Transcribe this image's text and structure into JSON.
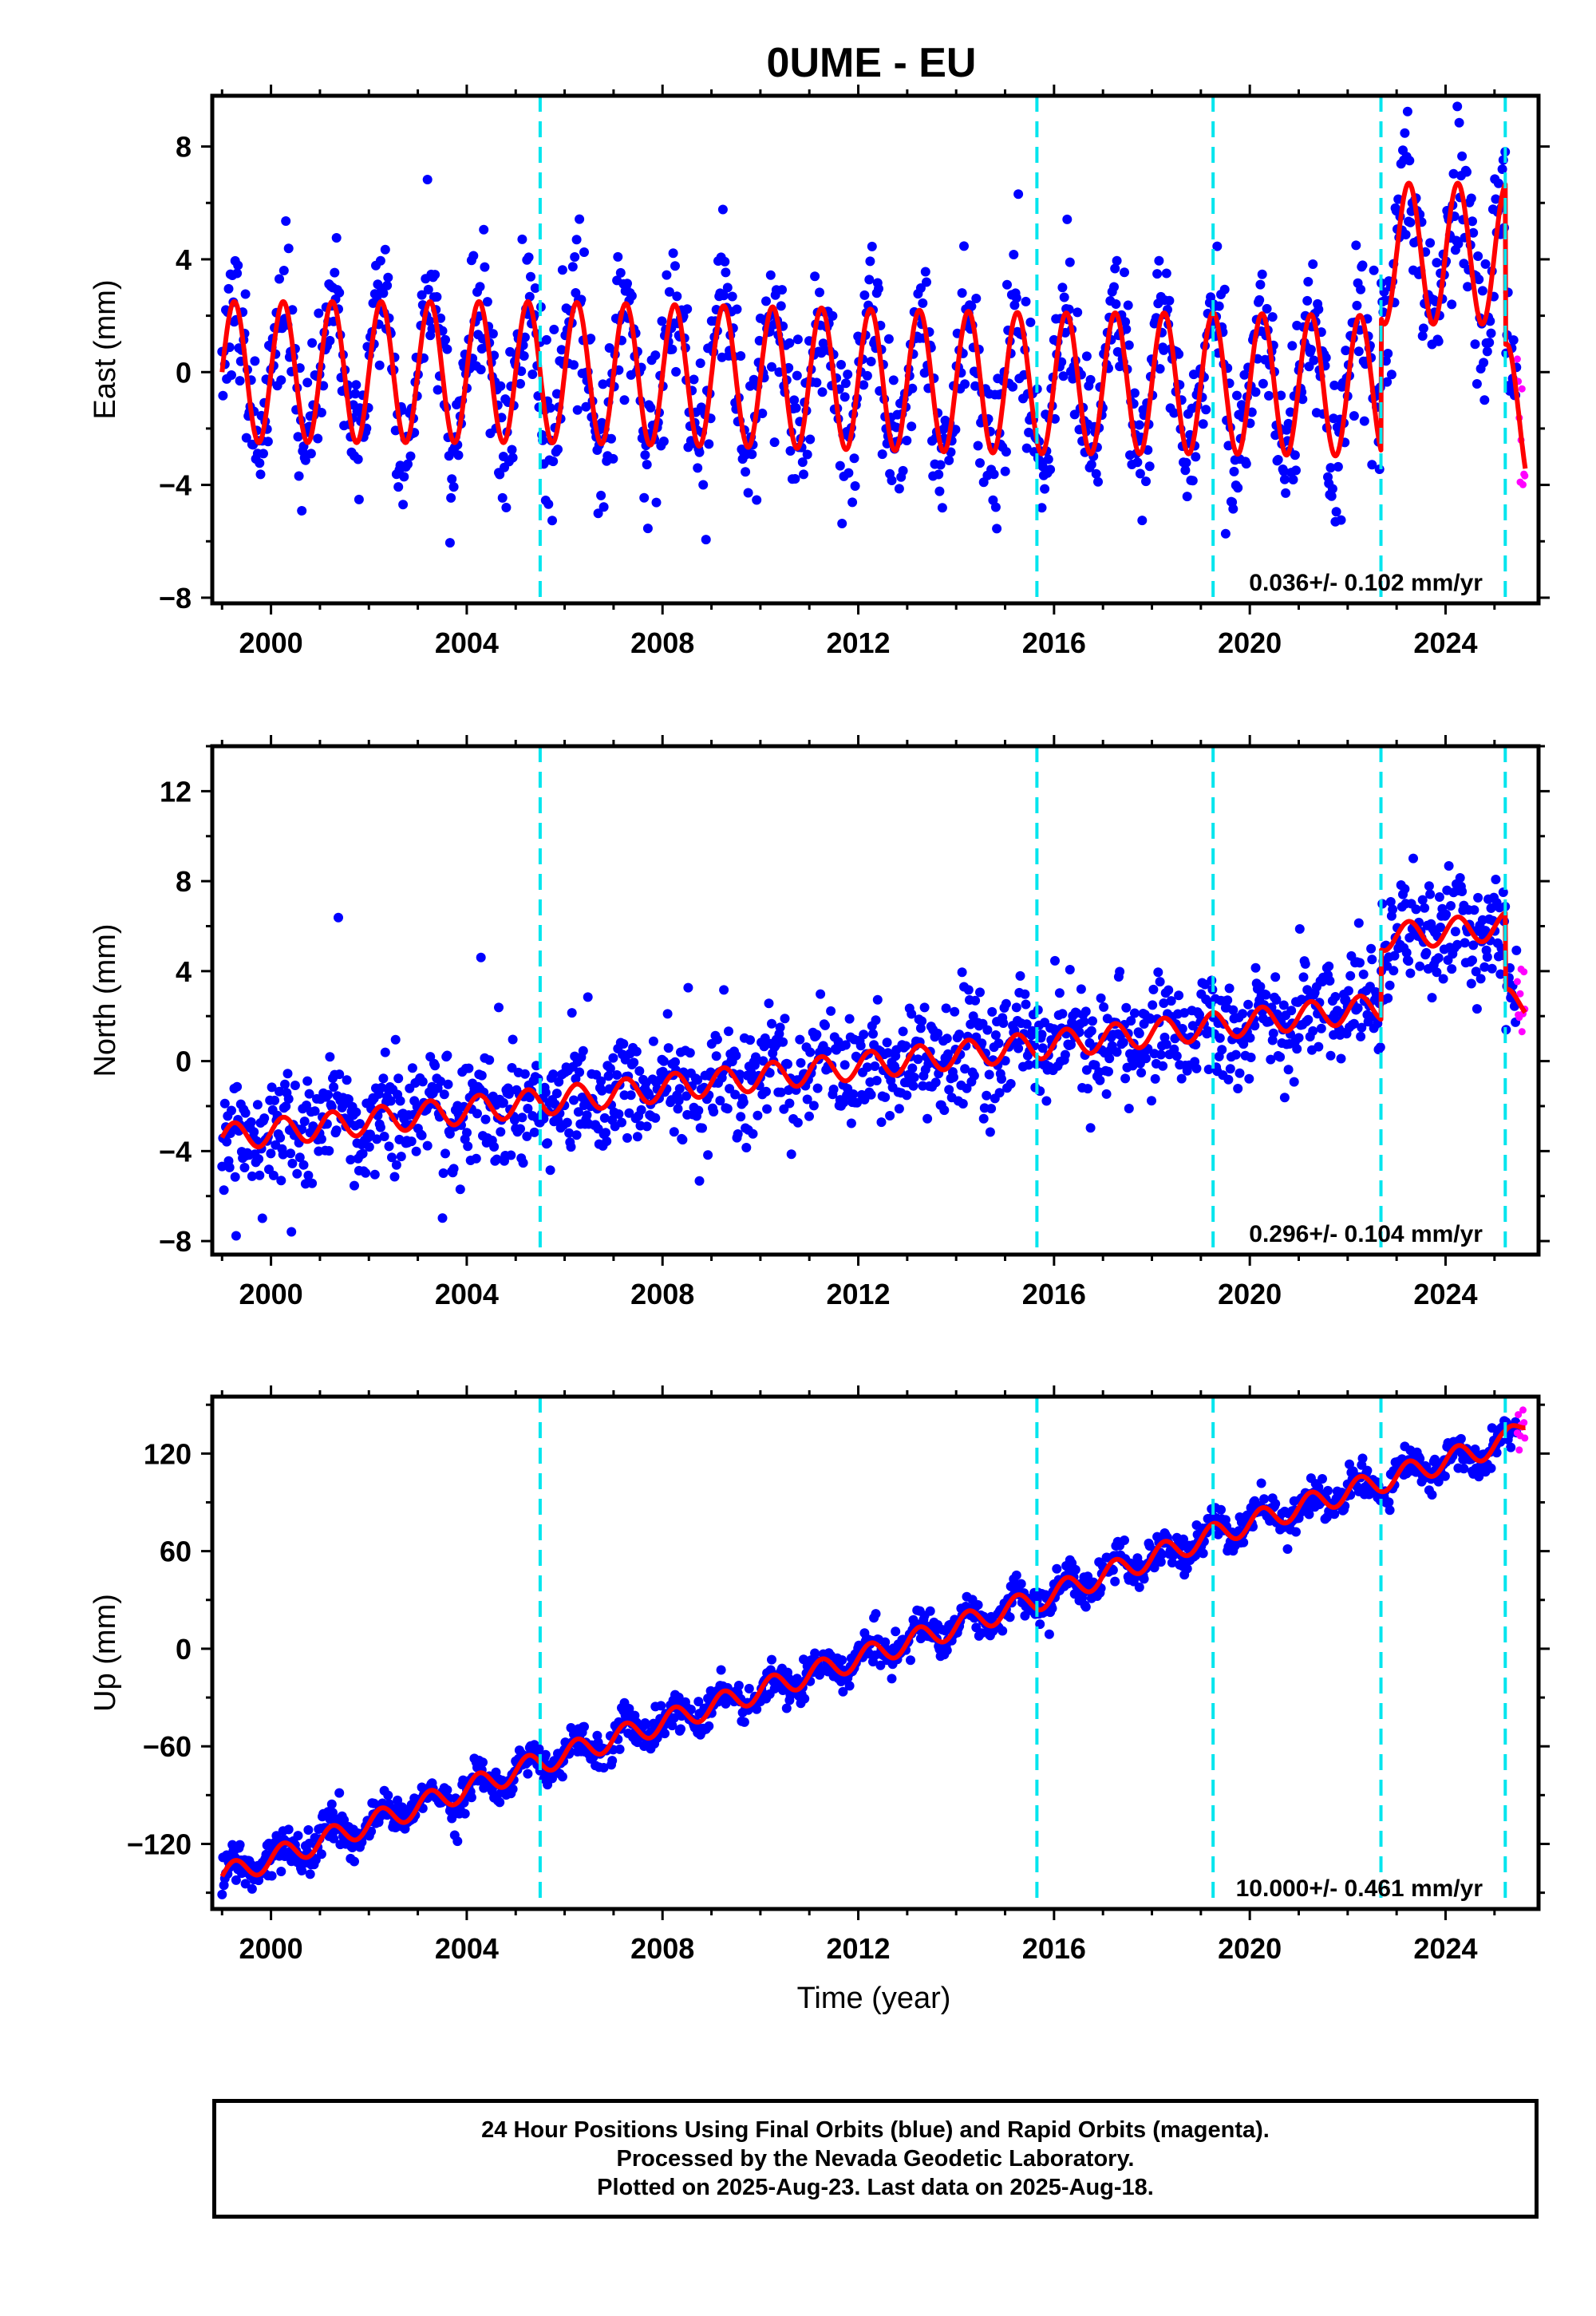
{
  "title": "0UME - EU",
  "xlabel": "Time (year)",
  "footer": {
    "line1": "24 Hour Positions Using Final Orbits (blue) and Rapid Orbits (magenta).",
    "line2": "Processed by the Nevada Geodetic Laboratory.",
    "line3": "Plotted on 2025-Aug-23. Last data on 2025-Aug-18."
  },
  "colors": {
    "final_orbits": "#0000ff",
    "rapid_orbits": "#ff00ff",
    "model": "#ff0000",
    "offsets": "#00e5ee"
  },
  "chart_data": [
    {
      "type": "scatter",
      "component": "east",
      "ylabel": "East (mm)",
      "xlim": [
        1998.8,
        2025.9
      ],
      "ylim": [
        -8.2,
        9.8
      ],
      "xticks": [
        2000,
        2004,
        2008,
        2012,
        2016,
        2020,
        2024
      ],
      "yticks": [
        -8,
        -4,
        0,
        4,
        8
      ],
      "grid": false,
      "rate_label": "0.036+/- 0.102 mm/yr",
      "velocity": 0.036,
      "velocity_sigma": 0.102,
      "first_year": 1999.0,
      "last_final_year": 2025.45,
      "last_year": 2025.63,
      "offset_years": [
        2005.5,
        2015.65,
        2019.25,
        2022.68,
        2025.22
      ],
      "annual_amplitude": 2.5,
      "scatter_sigma": 1.3,
      "model_anchors": [
        [
          1999.0,
          0.0
        ],
        [
          2005.5,
          0.0
        ],
        [
          2015.65,
          -0.4
        ],
        [
          2019.25,
          -0.4
        ],
        [
          2022.68,
          -0.5
        ],
        [
          2022.69,
          4.2
        ],
        [
          2025.22,
          4.2
        ],
        [
          2025.23,
          -1.5
        ],
        [
          2025.63,
          -1.6
        ]
      ],
      "series": [
        {
          "name": "Final Orbits (blue)",
          "color": "#0000ff"
        },
        {
          "name": "Rapid Orbits (magenta)",
          "color": "#ff00ff"
        }
      ]
    },
    {
      "type": "scatter",
      "component": "north",
      "ylabel": "North (mm)",
      "xlim": [
        1998.8,
        2025.9
      ],
      "ylim": [
        -8.6,
        14.0
      ],
      "xticks": [
        2000,
        2004,
        2008,
        2012,
        2016,
        2020,
        2024
      ],
      "yticks": [
        -8,
        -4,
        0,
        4,
        8,
        12
      ],
      "grid": false,
      "rate_label": "0.296+/- 0.104 mm/yr",
      "velocity": 0.296,
      "velocity_sigma": 0.104,
      "first_year": 1999.0,
      "last_final_year": 2025.45,
      "last_year": 2025.63,
      "offset_years": [
        2005.5,
        2015.65,
        2019.25,
        2022.68,
        2025.22
      ],
      "annual_amplitude": 0.6,
      "scatter_sigma": 1.2,
      "model_anchors": [
        [
          1999.0,
          -3.4
        ],
        [
          2022.68,
          2.4
        ],
        [
          2022.69,
          5.5
        ],
        [
          2025.22,
          6.0
        ],
        [
          2025.23,
          2.6
        ],
        [
          2025.63,
          2.6
        ]
      ],
      "series": [
        {
          "name": "Final Orbits (blue)",
          "color": "#0000ff"
        },
        {
          "name": "Rapid Orbits (magenta)",
          "color": "#ff00ff"
        }
      ]
    },
    {
      "type": "scatter",
      "component": "up",
      "ylabel": "Up (mm)",
      "xlim": [
        1998.8,
        2025.9
      ],
      "ylim": [
        -160,
        155
      ],
      "xticks": [
        2000,
        2004,
        2008,
        2012,
        2016,
        2020,
        2024
      ],
      "yticks": [
        -120,
        -60,
        0,
        60,
        120
      ],
      "grid": false,
      "rate_label": "10.000+/- 0.461 mm/yr",
      "velocity": 10.0,
      "velocity_sigma": 0.461,
      "first_year": 1999.0,
      "last_final_year": 2025.45,
      "last_year": 2025.63,
      "offset_years": [
        2005.5,
        2015.65,
        2019.25,
        2022.68,
        2025.22
      ],
      "annual_amplitude": 7.0,
      "scatter_sigma": 5.5,
      "model_anchors": [
        [
          1999.0,
          -140
        ],
        [
          2005.5,
          -70
        ],
        [
          2015.65,
          30
        ],
        [
          2019.25,
          70
        ],
        [
          2022.68,
          103
        ],
        [
          2025.22,
          127
        ],
        [
          2025.63,
          141
        ]
      ],
      "series": [
        {
          "name": "Final Orbits (blue)",
          "color": "#0000ff"
        },
        {
          "name": "Rapid Orbits (magenta)",
          "color": "#ff00ff"
        }
      ]
    }
  ]
}
